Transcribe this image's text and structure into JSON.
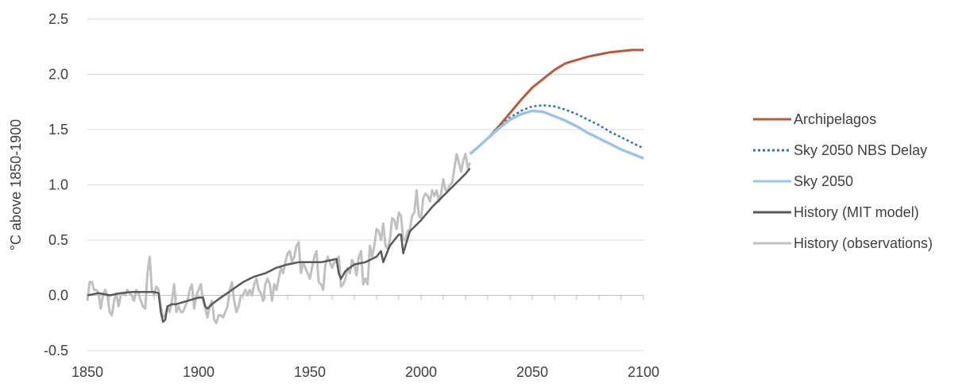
{
  "chart_data": {
    "type": "line",
    "title": "",
    "xlabel": "",
    "ylabel": "°C above 1850-1900",
    "xlim": [
      1850,
      2100
    ],
    "ylim": [
      -0.5,
      2.5
    ],
    "xticks": [
      1850,
      1900,
      1950,
      2000,
      2050,
      2100
    ],
    "xtick_labels": [
      "1850",
      "1900",
      "1950",
      "2000",
      "2050",
      "2100"
    ],
    "yticks": [
      -0.5,
      0.0,
      0.5,
      1.0,
      1.5,
      2.0,
      2.5
    ],
    "ytick_labels": [
      "-0.5",
      "0.0",
      "0.5",
      "1.0",
      "1.5",
      "2.0",
      "2.5"
    ],
    "grid": "horizontal",
    "legend_position": "right",
    "series": [
      {
        "name": "History (observations)",
        "color": "#c0c0c0",
        "dash": "solid",
        "x": [
          1850,
          1851,
          1852,
          1853,
          1854,
          1855,
          1856,
          1857,
          1858,
          1859,
          1860,
          1861,
          1862,
          1863,
          1864,
          1865,
          1866,
          1867,
          1868,
          1869,
          1870,
          1871,
          1872,
          1873,
          1874,
          1875,
          1876,
          1877,
          1878,
          1879,
          1880,
          1881,
          1882,
          1883,
          1884,
          1885,
          1886,
          1887,
          1888,
          1889,
          1890,
          1891,
          1892,
          1893,
          1894,
          1895,
          1896,
          1897,
          1898,
          1899,
          1900,
          1901,
          1902,
          1903,
          1904,
          1905,
          1906,
          1907,
          1908,
          1909,
          1910,
          1911,
          1912,
          1913,
          1914,
          1915,
          1916,
          1917,
          1918,
          1919,
          1920,
          1921,
          1922,
          1923,
          1924,
          1925,
          1926,
          1927,
          1928,
          1929,
          1930,
          1931,
          1932,
          1933,
          1934,
          1935,
          1936,
          1937,
          1938,
          1939,
          1940,
          1941,
          1942,
          1943,
          1944,
          1945,
          1946,
          1947,
          1948,
          1949,
          1950,
          1951,
          1952,
          1953,
          1954,
          1955,
          1956,
          1957,
          1958,
          1959,
          1960,
          1961,
          1962,
          1963,
          1964,
          1965,
          1966,
          1967,
          1968,
          1969,
          1970,
          1971,
          1972,
          1973,
          1974,
          1975,
          1976,
          1977,
          1978,
          1979,
          1980,
          1981,
          1982,
          1983,
          1984,
          1985,
          1986,
          1987,
          1988,
          1989,
          1990,
          1991,
          1992,
          1993,
          1994,
          1995,
          1996,
          1997,
          1998,
          1999,
          2000,
          2001,
          2002,
          2003,
          2004,
          2005,
          2006,
          2007,
          2008,
          2009,
          2010,
          2011,
          2012,
          2013,
          2014,
          2015,
          2016,
          2017,
          2018,
          2019,
          2020,
          2021,
          2022
        ],
        "y": [
          -0.05,
          0.12,
          0.12,
          0.05,
          0.05,
          0.02,
          -0.12,
          0.0,
          0.05,
          0.0,
          -0.15,
          -0.18,
          -0.05,
          0.02,
          -0.1,
          0.0,
          0.02,
          0.0,
          0.05,
          0.02,
          0.0,
          -0.05,
          0.05,
          0.02,
          -0.05,
          -0.1,
          -0.12,
          0.2,
          0.35,
          0.05,
          0.0,
          0.08,
          0.05,
          -0.1,
          -0.2,
          -0.18,
          -0.1,
          -0.15,
          -0.05,
          0.1,
          -0.15,
          -0.1,
          -0.15,
          -0.15,
          -0.1,
          -0.05,
          0.05,
          0.1,
          -0.12,
          0.0,
          0.05,
          0.1,
          -0.05,
          -0.12,
          -0.2,
          -0.1,
          -0.05,
          -0.22,
          -0.25,
          -0.18,
          -0.18,
          -0.2,
          -0.15,
          -0.1,
          0.05,
          0.12,
          -0.05,
          -0.15,
          -0.1,
          0.0,
          0.0,
          0.05,
          0.0,
          0.05,
          0.0,
          0.1,
          0.15,
          0.05,
          0.02,
          -0.05,
          0.1,
          0.15,
          0.1,
          -0.05,
          0.1,
          0.05,
          0.15,
          0.25,
          0.2,
          0.3,
          0.38,
          0.4,
          0.3,
          0.35,
          0.45,
          0.48,
          0.2,
          0.3,
          0.25,
          0.2,
          0.15,
          0.25,
          0.35,
          0.4,
          0.12,
          0.1,
          0.05,
          0.28,
          0.35,
          0.3,
          0.25,
          0.3,
          0.3,
          0.35,
          0.08,
          0.1,
          0.15,
          0.25,
          0.2,
          0.32,
          0.28,
          0.18,
          0.35,
          0.4,
          0.1,
          0.15,
          0.1,
          0.45,
          0.35,
          0.45,
          0.6,
          0.58,
          0.5,
          0.65,
          0.45,
          0.42,
          0.5,
          0.7,
          0.68,
          0.6,
          0.75,
          0.72,
          0.5,
          0.5,
          0.58,
          0.6,
          0.72,
          0.75,
          0.95,
          0.72,
          0.7,
          0.88,
          0.92,
          0.9,
          0.85,
          0.95,
          0.9,
          0.95,
          0.85,
          0.92,
          1.05,
          0.95,
          0.95,
          1.0,
          1.02,
          1.15,
          1.28,
          1.2,
          1.12,
          1.22,
          1.28,
          1.15,
          1.2
        ]
      },
      {
        "name": "History (MIT model)",
        "color": "#595959",
        "dash": "solid",
        "x": [
          1850,
          1855,
          1860,
          1865,
          1870,
          1875,
          1880,
          1882,
          1883,
          1884,
          1885,
          1886,
          1888,
          1890,
          1895,
          1900,
          1902,
          1903,
          1904,
          1906,
          1908,
          1910,
          1915,
          1920,
          1925,
          1930,
          1935,
          1940,
          1945,
          1950,
          1955,
          1960,
          1962,
          1963,
          1964,
          1966,
          1968,
          1970,
          1975,
          1980,
          1982,
          1983,
          1984,
          1986,
          1990,
          1991,
          1992,
          1993,
          1995,
          2000,
          2005,
          2010,
          2015,
          2020,
          2022
        ],
        "y": [
          0.0,
          0.02,
          0.0,
          0.02,
          0.03,
          0.03,
          0.03,
          0.02,
          -0.15,
          -0.24,
          -0.22,
          -0.1,
          -0.08,
          -0.08,
          -0.05,
          -0.02,
          -0.02,
          -0.1,
          -0.12,
          -0.08,
          -0.05,
          -0.02,
          0.05,
          0.12,
          0.17,
          0.2,
          0.25,
          0.28,
          0.3,
          0.3,
          0.3,
          0.32,
          0.33,
          0.2,
          0.15,
          0.22,
          0.25,
          0.28,
          0.3,
          0.35,
          0.4,
          0.3,
          0.35,
          0.45,
          0.55,
          0.55,
          0.38,
          0.45,
          0.58,
          0.68,
          0.8,
          0.9,
          1.0,
          1.1,
          1.15
        ]
      },
      {
        "name": "Archipelagos",
        "color": "#b85b3b",
        "dash": "solid",
        "x": [
          2022,
          2025,
          2030,
          2035,
          2040,
          2045,
          2050,
          2055,
          2060,
          2065,
          2070,
          2075,
          2080,
          2085,
          2090,
          2095,
          2100
        ],
        "y": [
          1.28,
          1.33,
          1.42,
          1.53,
          1.65,
          1.77,
          1.88,
          1.96,
          2.04,
          2.1,
          2.13,
          2.16,
          2.18,
          2.2,
          2.21,
          2.22,
          2.22
        ]
      },
      {
        "name": "Sky 2050 NBS Delay",
        "color": "#2e75b6",
        "dash": "dotted",
        "x": [
          2022,
          2025,
          2030,
          2035,
          2040,
          2045,
          2050,
          2055,
          2060,
          2065,
          2070,
          2075,
          2080,
          2085,
          2090,
          2095,
          2100
        ],
        "y": [
          1.28,
          1.33,
          1.42,
          1.52,
          1.61,
          1.67,
          1.71,
          1.72,
          1.71,
          1.68,
          1.64,
          1.59,
          1.54,
          1.48,
          1.43,
          1.38,
          1.33
        ]
      },
      {
        "name": "Sky 2050",
        "color": "#9dc3e6",
        "dash": "solid",
        "x": [
          2022,
          2025,
          2030,
          2035,
          2040,
          2045,
          2050,
          2055,
          2060,
          2065,
          2070,
          2075,
          2080,
          2085,
          2090,
          2095,
          2100
        ],
        "y": [
          1.28,
          1.33,
          1.42,
          1.51,
          1.59,
          1.64,
          1.67,
          1.66,
          1.62,
          1.58,
          1.53,
          1.47,
          1.42,
          1.37,
          1.32,
          1.28,
          1.24
        ]
      }
    ],
    "legend_order": [
      "Archipelagos",
      "Sky 2050 NBS Delay",
      "Sky 2050",
      "History (MIT model)",
      "History (observations)"
    ]
  }
}
